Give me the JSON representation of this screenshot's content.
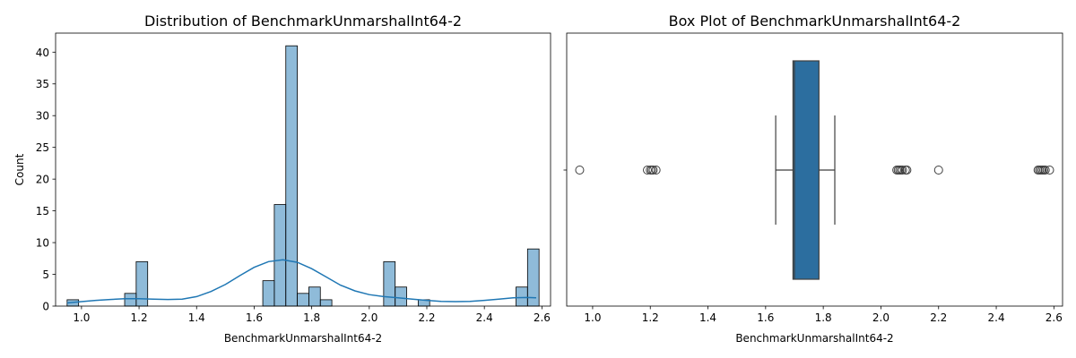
{
  "chart_data": [
    {
      "type": "histogram",
      "title": "Distribution of BenchmarkUnmarshalInt64-2",
      "xlabel": "BenchmarkUnmarshalInt64-2",
      "ylabel": "Count",
      "xlim": [
        0.91,
        2.63
      ],
      "ylim": [
        0,
        43
      ],
      "xticks": [
        "1.0",
        "1.2",
        "1.4",
        "1.6",
        "1.8",
        "2.0",
        "2.2",
        "2.4",
        "2.6"
      ],
      "yticks": [
        "0",
        "5",
        "10",
        "15",
        "20",
        "25",
        "30",
        "35",
        "40"
      ],
      "bar_color": "#1f77b4",
      "bins": [
        {
          "x0": 0.95,
          "x1": 0.99,
          "count": 1
        },
        {
          "x0": 1.15,
          "x1": 1.19,
          "count": 2
        },
        {
          "x0": 1.19,
          "x1": 1.23,
          "count": 7
        },
        {
          "x0": 1.63,
          "x1": 1.67,
          "count": 4
        },
        {
          "x0": 1.67,
          "x1": 1.71,
          "count": 16
        },
        {
          "x0": 1.71,
          "x1": 1.75,
          "count": 41
        },
        {
          "x0": 1.75,
          "x1": 1.79,
          "count": 2
        },
        {
          "x0": 1.79,
          "x1": 1.83,
          "count": 3
        },
        {
          "x0": 1.83,
          "x1": 1.87,
          "count": 1
        },
        {
          "x0": 2.05,
          "x1": 2.09,
          "count": 7
        },
        {
          "x0": 2.09,
          "x1": 2.13,
          "count": 3
        },
        {
          "x0": 2.17,
          "x1": 2.21,
          "count": 1
        },
        {
          "x0": 2.51,
          "x1": 2.55,
          "count": 3
        },
        {
          "x0": 2.55,
          "x1": 2.59,
          "count": 9
        }
      ],
      "kde": {
        "x": [
          0.95,
          1.0,
          1.05,
          1.1,
          1.15,
          1.2,
          1.25,
          1.3,
          1.35,
          1.4,
          1.45,
          1.5,
          1.55,
          1.6,
          1.65,
          1.7,
          1.75,
          1.8,
          1.85,
          1.9,
          1.95,
          2.0,
          2.05,
          2.1,
          2.15,
          2.2,
          2.25,
          2.3,
          2.35,
          2.4,
          2.45,
          2.5,
          2.55,
          2.58
        ],
        "y": [
          0.5,
          0.7,
          0.9,
          1.05,
          1.15,
          1.15,
          1.1,
          1.05,
          1.1,
          1.5,
          2.3,
          3.4,
          4.8,
          6.1,
          7.0,
          7.3,
          6.9,
          5.9,
          4.6,
          3.3,
          2.4,
          1.8,
          1.5,
          1.3,
          1.1,
          0.9,
          0.75,
          0.7,
          0.75,
          0.9,
          1.1,
          1.3,
          1.35,
          1.3
        ]
      }
    },
    {
      "type": "box",
      "title": "Box Plot of BenchmarkUnmarshalInt64-2",
      "xlabel": "BenchmarkUnmarshalInt64-2",
      "xlim": [
        0.91,
        2.63
      ],
      "xticks": [
        "1.0",
        "1.2",
        "1.4",
        "1.6",
        "1.8",
        "2.0",
        "2.2",
        "2.4",
        "2.6"
      ],
      "box_color": "#2c6e9f",
      "whisker_low": 1.635,
      "q1": 1.695,
      "median": 1.7,
      "q3": 1.785,
      "whisker_high": 1.84,
      "outliers": [
        0.955,
        1.19,
        1.2,
        1.205,
        1.21,
        1.22,
        2.055,
        2.06,
        2.065,
        2.07,
        2.075,
        2.085,
        2.09,
        2.2,
        2.545,
        2.55,
        2.555,
        2.56,
        2.565,
        2.57,
        2.585
      ]
    }
  ]
}
